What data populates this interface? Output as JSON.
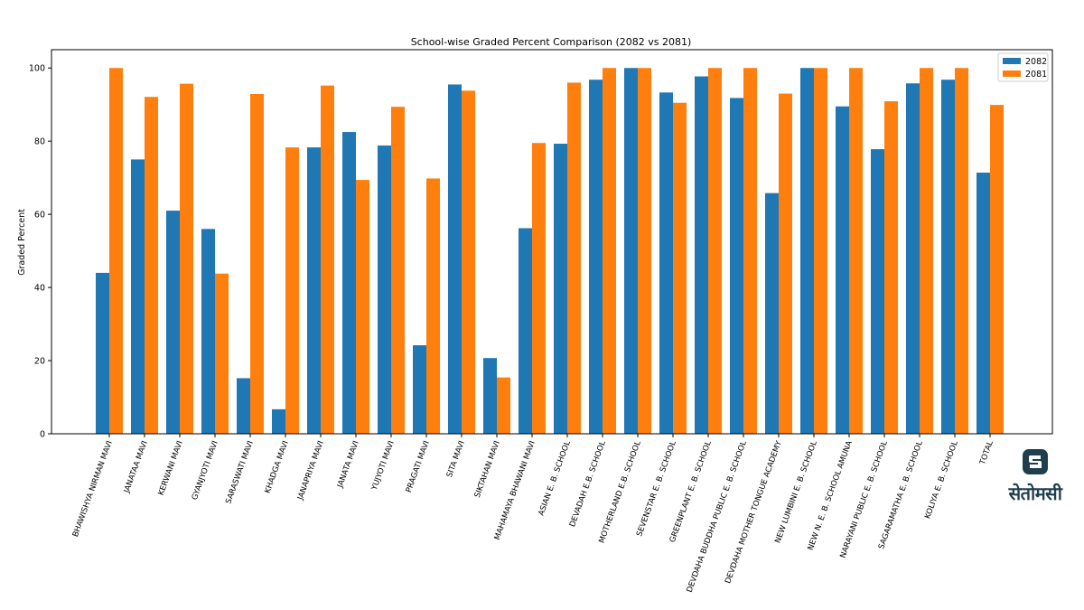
{
  "chart_data": {
    "type": "bar",
    "title": "School-wise Graded Percent Comparison (2082 vs 2081)",
    "xlabel": "",
    "ylabel": "Graded Percent",
    "ylim": [
      0,
      105
    ],
    "yticks": [
      0,
      20,
      40,
      60,
      80,
      100
    ],
    "grid": false,
    "legend_position": "top-right",
    "categories": [
      "BHAWISHYA NIRMAN MAVI",
      "JANATAA MAVI",
      "KERWANI MAVI",
      "GYANJYOTI MAVI",
      "SARASWATI MAVI",
      "KHADGA MAVI",
      "JANAPRIYA MAVI",
      "JANATA MAVI",
      "YUJYOTI MAVI",
      "PRAGATI MAVI",
      "SITA MAVI",
      "SIKTAHAN MAVI",
      "MAHAMAYA BHAWANI MAVI",
      "ASIAN E. B. SCHOOL",
      "DEVADAH E.B. SCHOOL",
      "MOTHERLAND E.B. SCHOOL",
      "SEVENSTAR E. B. SCHOOL",
      "GREENPLANT E. B. SCHOOL",
      "DEVDAHA BUDDHA PUBLIC E. B. SCHOOL",
      "DEVDAHA MOTHER TONGUE ACADEMY",
      "NEW LUMBINI E. B. SCHOOL",
      "NEW N. E. B. SCHOOL AMUNA",
      "NARAYANI PUBLIC E. B. SCHOOL",
      "SAGARAMATHA E. B. SCHOOL",
      "KOLIYA E. B. SCHOOL",
      "TOTAL"
    ],
    "series": [
      {
        "name": "2082",
        "color": "#1f77b4",
        "values": [
          44,
          75,
          61,
          56,
          15.2,
          6.7,
          78.3,
          82.5,
          78.8,
          24.2,
          95.5,
          20.7,
          56.2,
          79.3,
          96.8,
          100,
          93.3,
          97.7,
          91.8,
          65.8,
          100,
          89.5,
          77.8,
          95.8,
          96.8,
          71.4
        ]
      },
      {
        "name": "2081",
        "color": "#ff7f0e",
        "values": [
          100,
          92.1,
          95.7,
          43.8,
          92.9,
          78.3,
          95.2,
          69.4,
          89.4,
          69.8,
          93.8,
          15.4,
          79.5,
          96,
          100,
          100,
          90.5,
          100,
          100,
          93,
          100,
          100,
          90.9,
          100,
          100,
          89.9
        ]
      }
    ]
  },
  "logo": {
    "text": "सेतोमसी",
    "icon": "stacked-s-emblem-icon"
  }
}
